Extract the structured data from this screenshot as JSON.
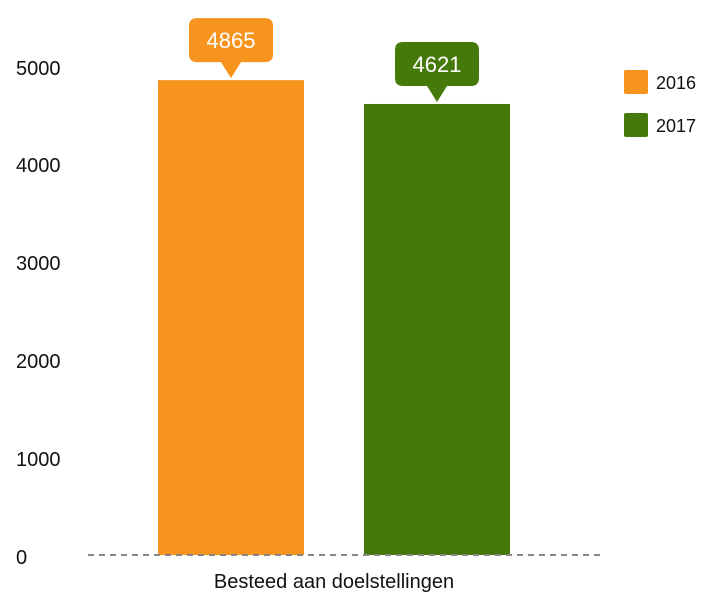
{
  "chart_data": {
    "type": "bar",
    "categories": [
      "Besteed aan doelstellingen"
    ],
    "series": [
      {
        "name": "2016",
        "values": [
          4865
        ],
        "color": "#f7941e"
      },
      {
        "name": "2017",
        "values": [
          4621
        ],
        "color": "#457a0a"
      }
    ],
    "y_ticks": [
      "0",
      "1000",
      "2000",
      "3000",
      "4000",
      "5000"
    ],
    "ylim": [
      0,
      5000
    ],
    "grid": false,
    "legend_position": "top-right",
    "data_labels": [
      "4865",
      "4621"
    ],
    "baseline_color": "#888888"
  }
}
